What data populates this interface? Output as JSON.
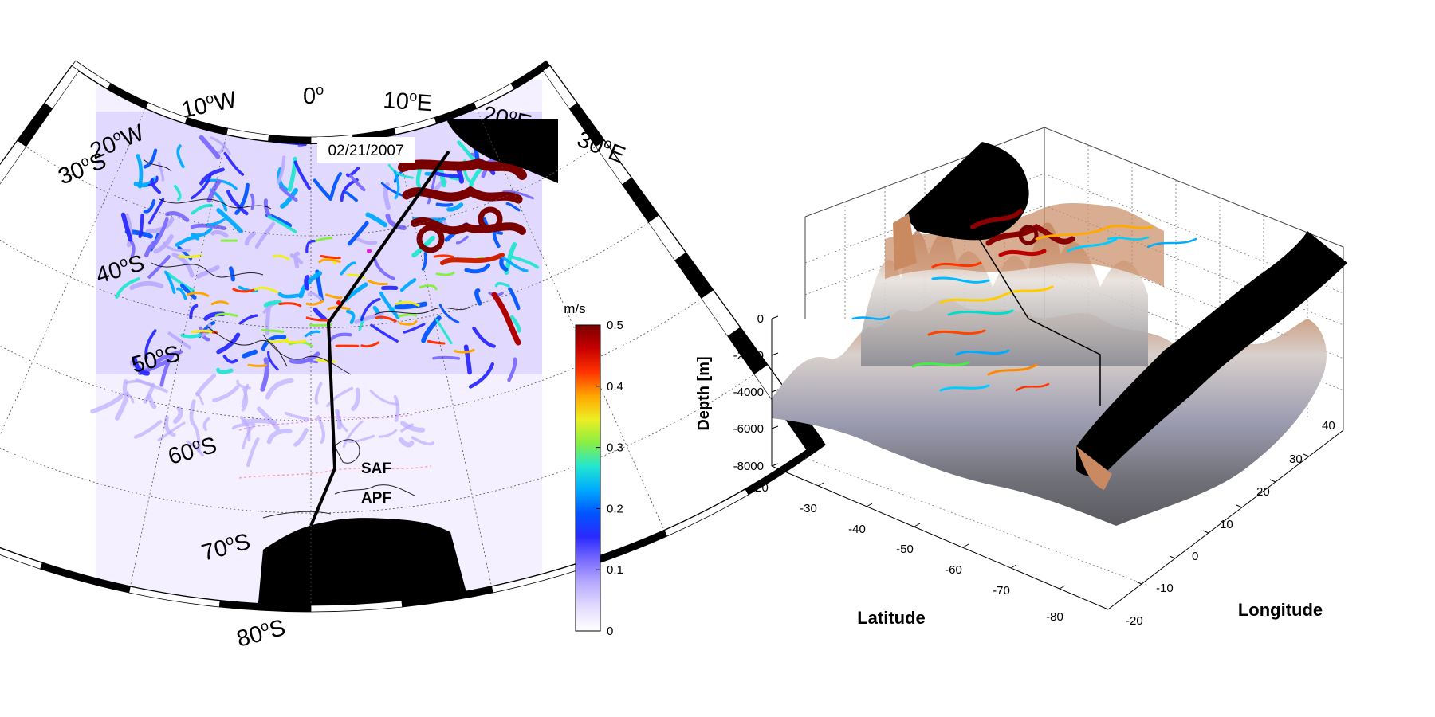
{
  "map": {
    "date": "02/21/2007",
    "longitude_labels": [
      {
        "deg": "20",
        "dir": "W"
      },
      {
        "deg": "10",
        "dir": "W"
      },
      {
        "deg": "0",
        "dir": ""
      },
      {
        "deg": "10",
        "dir": "E"
      },
      {
        "deg": "20",
        "dir": "E"
      },
      {
        "deg": "30",
        "dir": "E"
      }
    ],
    "latitude_labels": [
      {
        "deg": "30",
        "dir": "S"
      },
      {
        "deg": "40",
        "dir": "S"
      },
      {
        "deg": "50",
        "dir": "S"
      },
      {
        "deg": "60",
        "dir": "S"
      },
      {
        "deg": "70",
        "dir": "S"
      },
      {
        "deg": "80",
        "dir": "S"
      }
    ],
    "fronts": [
      {
        "label": "SAF",
        "color": "#e020e0"
      },
      {
        "label": "APF",
        "color": "#ff1010"
      }
    ],
    "colorbar": {
      "unit": "m/s",
      "min": 0,
      "max": 0.5,
      "ticks": [
        "0.5",
        "0.4",
        "0.3",
        "0.2",
        "0.1",
        "0"
      ],
      "colormap": [
        "#ffffff",
        "#e4dcff",
        "#b9adff",
        "#7a6cff",
        "#2a2aff",
        "#0055ff",
        "#00aaff",
        "#22e6d0",
        "#88ee44",
        "#eeee22",
        "#ffa500",
        "#ff3300",
        "#c80000",
        "#7a0000"
      ]
    }
  },
  "panel3d": {
    "z_axis": {
      "label": "Depth [m]",
      "ticks": [
        "0",
        "-2000",
        "-4000",
        "-6000",
        "-8000"
      ]
    },
    "x_axis": {
      "label": "Latitude",
      "ticks": [
        "-20",
        "-30",
        "-40",
        "-50",
        "-60",
        "-70",
        "-80"
      ]
    },
    "y_axis": {
      "label": "Longitude",
      "ticks": [
        "-20",
        "-10",
        "0",
        "10",
        "20",
        "30",
        "40"
      ]
    }
  }
}
